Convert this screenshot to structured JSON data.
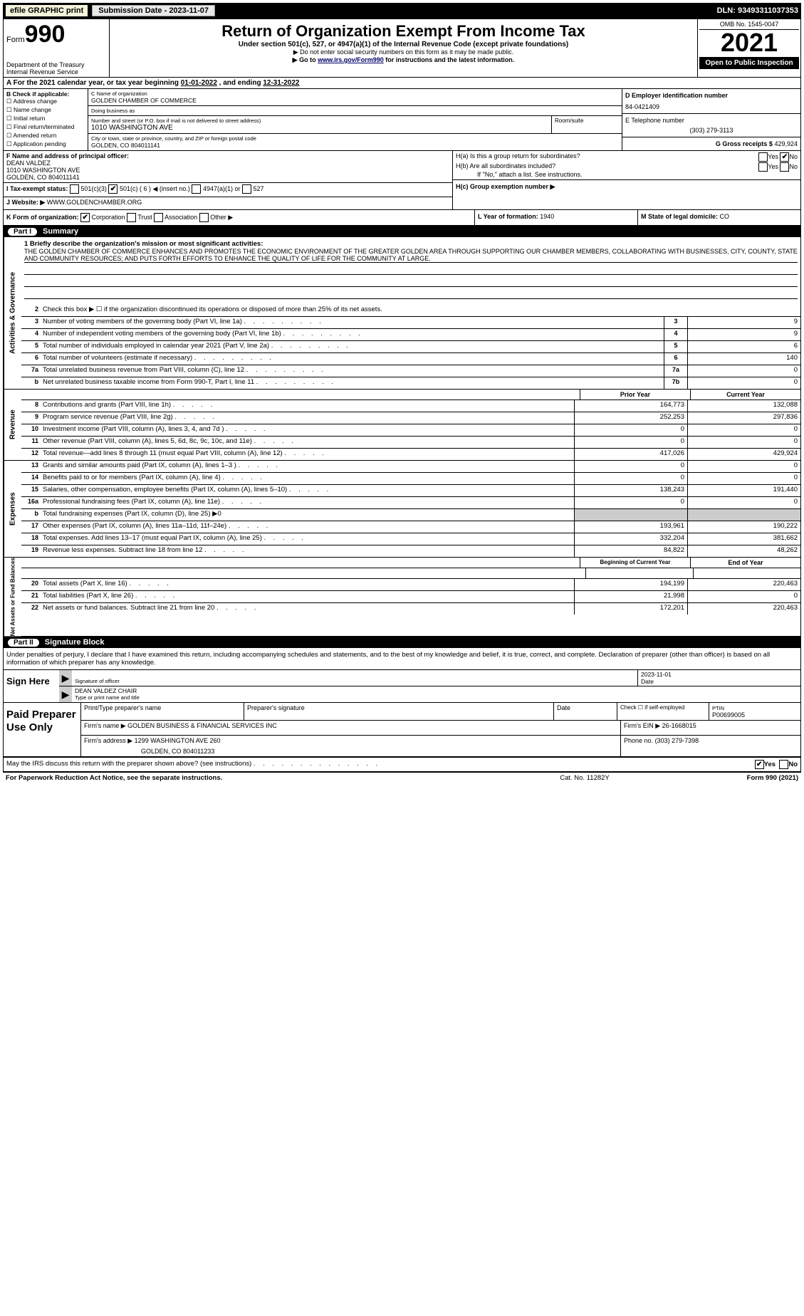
{
  "top": {
    "efile": "efile GRAPHIC print",
    "submission": "Submission Date - 2023-11-07",
    "dln": "DLN: 93493311037353"
  },
  "header": {
    "form_label": "Form",
    "form_no": "990",
    "dept": "Department of the Treasury",
    "irs": "Internal Revenue Service",
    "title": "Return of Organization Exempt From Income Tax",
    "sub": "Under section 501(c), 527, or 4947(a)(1) of the Internal Revenue Code (except private foundations)",
    "arrow1": "▶ Do not enter social security numbers on this form as it may be made public.",
    "arrow2_pre": "▶ Go to ",
    "arrow2_link": "www.irs.gov/Form990",
    "arrow2_post": " for instructions and the latest information.",
    "omb": "OMB No. 1545-0047",
    "year": "2021",
    "open": "Open to Public Inspection"
  },
  "A": {
    "text_pre": "A For the 2021 calendar year, or tax year beginning ",
    "begin": "01-01-2022",
    "mid": "  , and ending ",
    "end": "12-31-2022"
  },
  "B": {
    "label": "B Check if applicable:",
    "opts": [
      "Address change",
      "Name change",
      "Initial return",
      "Final return/terminated",
      "Amended return",
      "Application pending"
    ]
  },
  "C": {
    "name_lbl": "C Name of organization",
    "name": "GOLDEN CHAMBER OF COMMERCE",
    "dba_lbl": "Doing business as",
    "dba": "",
    "street_lbl": "Number and street (or P.O. box if mail is not delivered to street address)",
    "room_lbl": "Room/suite",
    "street": "1010 WASHINGTON AVE",
    "city_lbl": "City or town, state or province, country, and ZIP or foreign postal code",
    "city": "GOLDEN, CO  804011141"
  },
  "D": {
    "lbl": "D Employer identification number",
    "val": "84-0421409"
  },
  "E": {
    "lbl": "E Telephone number",
    "val": "(303) 279-3113"
  },
  "G": {
    "lbl": "G Gross receipts $",
    "val": "429,924"
  },
  "F": {
    "lbl": "F Name and address of principal officer:",
    "name": "DEAN VALDEZ",
    "addr1": "1010 WASHINGTON AVE",
    "addr2": "GOLDEN, CO  804011141"
  },
  "H": {
    "a": "H(a)  Is this a group return for subordinates?",
    "b": "H(b)  Are all subordinates included?",
    "b_note": "If \"No,\" attach a list. See instructions.",
    "c": "H(c)  Group exemption number ▶",
    "yes": "Yes",
    "no": "No"
  },
  "I": {
    "lbl": "I  Tax-exempt status:",
    "o1": "501(c)(3)",
    "o2_pre": "501(c) ( ",
    "o2_num": "6",
    "o2_post": " ) ◀ (insert no.)",
    "o3": "4947(a)(1) or",
    "o4": "527"
  },
  "J": {
    "lbl": "J  Website: ▶",
    "val": "WWW.GOLDENCHAMBER.ORG"
  },
  "K": {
    "lbl": "K Form of organization:",
    "o1": "Corporation",
    "o2": "Trust",
    "o3": "Association",
    "o4": "Other ▶"
  },
  "L": {
    "lbl": "L Year of formation:",
    "val": "1940"
  },
  "M": {
    "lbl": "M State of legal domicile:",
    "val": "CO"
  },
  "parts": {
    "p1": "Part I",
    "p1_title": "Summary",
    "p2": "Part II",
    "p2_title": "Signature Block"
  },
  "tabs": {
    "ag": "Activities & Governance",
    "rev": "Revenue",
    "exp": "Expenses",
    "na": "Net Assets or Fund Balances"
  },
  "mission": {
    "q": "1  Briefly describe the organization's mission or most significant activities:",
    "text": "THE GOLDEN CHAMBER OF COMMERCE ENHANCES AND PROMOTES THE ECONOMIC ENVIRONMENT OF THE GREATER GOLDEN AREA THROUGH SUPPORTING OUR CHAMBER MEMBERS, COLLABORATING WITH BUSINESSES, CITY, COUNTY, STATE AND COMMUNITY RESOURCES; AND PUTS FORTH EFFORTS TO ENHANCE THE QUALITY OF LIFE FOR THE COMMUNITY AT LARGE."
  },
  "line2": "Check this box ▶ ☐  if the organization discontinued its operations or disposed of more than 25% of its net assets.",
  "ag_rows": [
    {
      "n": "3",
      "d": "Number of voting members of the governing body (Part VI, line 1a)",
      "b": "3",
      "v": "9"
    },
    {
      "n": "4",
      "d": "Number of independent voting members of the governing body (Part VI, line 1b)",
      "b": "4",
      "v": "9"
    },
    {
      "n": "5",
      "d": "Total number of individuals employed in calendar year 2021 (Part V, line 2a)",
      "b": "5",
      "v": "6"
    },
    {
      "n": "6",
      "d": "Total number of volunteers (estimate if necessary)",
      "b": "6",
      "v": "140"
    },
    {
      "n": "7a",
      "d": "Total unrelated business revenue from Part VIII, column (C), line 12",
      "b": "7a",
      "v": "0"
    },
    {
      "n": "b",
      "d": "Net unrelated business taxable income from Form 990-T, Part I, line 11",
      "b": "7b",
      "v": "0"
    }
  ],
  "col_hdr": {
    "prior": "Prior Year",
    "current": "Current Year",
    "boy": "Beginning of Current Year",
    "eoy": "End of Year"
  },
  "rev_rows": [
    {
      "n": "8",
      "d": "Contributions and grants (Part VIII, line 1h)",
      "p": "164,773",
      "c": "132,088"
    },
    {
      "n": "9",
      "d": "Program service revenue (Part VIII, line 2g)",
      "p": "252,253",
      "c": "297,836"
    },
    {
      "n": "10",
      "d": "Investment income (Part VIII, column (A), lines 3, 4, and 7d )",
      "p": "0",
      "c": "0"
    },
    {
      "n": "11",
      "d": "Other revenue (Part VIII, column (A), lines 5, 6d, 8c, 9c, 10c, and 11e)",
      "p": "0",
      "c": "0"
    },
    {
      "n": "12",
      "d": "Total revenue—add lines 8 through 11 (must equal Part VIII, column (A), line 12)",
      "p": "417,026",
      "c": "429,924"
    }
  ],
  "exp_rows": [
    {
      "n": "13",
      "d": "Grants and similar amounts paid (Part IX, column (A), lines 1–3 )",
      "p": "0",
      "c": "0"
    },
    {
      "n": "14",
      "d": "Benefits paid to or for members (Part IX, column (A), line 4)",
      "p": "0",
      "c": "0"
    },
    {
      "n": "15",
      "d": "Salaries, other compensation, employee benefits (Part IX, column (A), lines 5–10)",
      "p": "138,243",
      "c": "191,440"
    },
    {
      "n": "16a",
      "d": "Professional fundraising fees (Part IX, column (A), line 11e)",
      "p": "0",
      "c": "0"
    },
    {
      "n": "b",
      "d": "Total fundraising expenses (Part IX, column (D), line 25) ▶0",
      "shade": true
    },
    {
      "n": "17",
      "d": "Other expenses (Part IX, column (A), lines 11a–11d, 11f–24e)",
      "p": "193,961",
      "c": "190,222"
    },
    {
      "n": "18",
      "d": "Total expenses. Add lines 13–17 (must equal Part IX, column (A), line 25)",
      "p": "332,204",
      "c": "381,662"
    },
    {
      "n": "19",
      "d": "Revenue less expenses. Subtract line 18 from line 12",
      "p": "84,822",
      "c": "48,262"
    }
  ],
  "na_rows": [
    {
      "n": "20",
      "d": "Total assets (Part X, line 16)",
      "p": "194,199",
      "c": "220,463"
    },
    {
      "n": "21",
      "d": "Total liabilities (Part X, line 26)",
      "p": "21,998",
      "c": "0"
    },
    {
      "n": "22",
      "d": "Net assets or fund balances. Subtract line 21 from line 20",
      "p": "172,201",
      "c": "220,463"
    }
  ],
  "sig": {
    "penalty": "Under penalties of perjury, I declare that I have examined this return, including accompanying schedules and statements, and to the best of my knowledge and belief, it is true, correct, and complete. Declaration of preparer (other than officer) is based on all information of which preparer has any knowledge.",
    "sign": "Sign Here",
    "sig_lbl": "Signature of officer",
    "date_lbl": "Date",
    "date_val": "2023-11-01",
    "name_val": "DEAN VALDEZ  CHAIR",
    "name_lbl": "Type or print name and title"
  },
  "prep": {
    "title": "Paid Preparer Use Only",
    "r1": {
      "c1": "Print/Type preparer's name",
      "c2": "Preparer's signature",
      "c3": "Date",
      "c4_lbl": "Check ☐ if self-employed",
      "c5_lbl": "PTIN",
      "c5": "P00699005"
    },
    "r2": {
      "c1": "Firm's name    ▶",
      "c1v": "GOLDEN BUSINESS & FINANCIAL SERVICES INC",
      "c2": "Firm's EIN ▶",
      "c2v": "26-1668015"
    },
    "r3": {
      "c1": "Firm's address ▶",
      "c1v": "1299 WASHINGTON AVE 260",
      "c2": "Phone no.",
      "c2v": "(303) 279-7398"
    },
    "r3b": "GOLDEN, CO  804011233"
  },
  "discuss": {
    "q": "May the IRS discuss this return with the preparer shown above? (see instructions)",
    "yes": "Yes",
    "no": "No"
  },
  "footer": {
    "l": "For Paperwork Reduction Act Notice, see the separate instructions.",
    "m": "Cat. No. 11282Y",
    "r": "Form 990 (2021)"
  }
}
